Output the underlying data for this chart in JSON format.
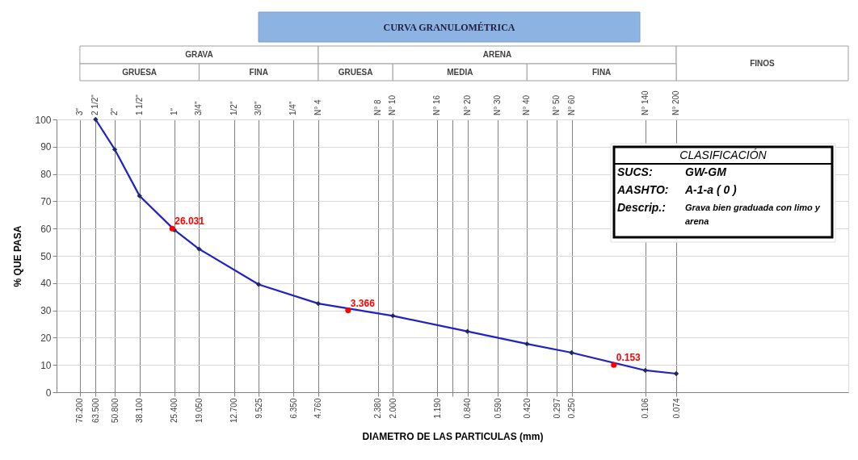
{
  "chart_data": {
    "type": "line",
    "title": "CURVA GRANULOMÉTRICA",
    "xlabel": "DIAMETRO DE LAS PARTICULAS (mm)",
    "ylabel": "% QUE PASA",
    "log": "x",
    "xlim": [
      100,
      0.01
    ],
    "ylim": [
      0,
      100
    ],
    "xticks": [
      {
        "value": 76.2,
        "label": "76.200"
      },
      {
        "value": 63.5,
        "label": "63.500"
      },
      {
        "value": 50.8,
        "label": "50.800"
      },
      {
        "value": 38.1,
        "label": "38.100"
      },
      {
        "value": 25.4,
        "label": "25.400"
      },
      {
        "value": 19.05,
        "label": "19.050"
      },
      {
        "value": 12.7,
        "label": "12.700"
      },
      {
        "value": 9.525,
        "label": "9.525"
      },
      {
        "value": 6.35,
        "label": "6.350"
      },
      {
        "value": 4.76,
        "label": "4.760"
      },
      {
        "value": 2.38,
        "label": "2.380"
      },
      {
        "value": 2.0,
        "label": "2.000"
      },
      {
        "value": 1.19,
        "label": "1.190"
      },
      {
        "value": 1.0,
        "label": null
      },
      {
        "value": 0.84,
        "label": "0.840"
      },
      {
        "value": 0.59,
        "label": "0.590"
      },
      {
        "value": 0.42,
        "label": "0.420"
      },
      {
        "value": 0.297,
        "label": "0.297"
      },
      {
        "value": 0.25,
        "label": "0.250"
      },
      {
        "value": 0.106,
        "label": "0.106"
      },
      {
        "value": 0.074,
        "label": "0.074"
      }
    ],
    "yticks": [
      0,
      10,
      20,
      30,
      40,
      50,
      60,
      70,
      80,
      90,
      100
    ],
    "grid": true,
    "series": [
      {
        "color": "#2121c4",
        "marker": "diamond",
        "line_style": "solid",
        "x": [
          63.5,
          50.8,
          38.1,
          25.4,
          19.05,
          9.525,
          4.76,
          2.0,
          0.84,
          0.42,
          0.25,
          0.106,
          0.074
        ],
        "values": [
          100,
          89,
          72,
          59.5,
          52.5,
          39.5,
          32.5,
          28,
          22.3,
          17.7,
          14.5,
          8,
          6.8
        ]
      },
      {
        "type": "scatter",
        "color": "#ff0000",
        "marker": "circle",
        "x": [
          26.031,
          3.366,
          0.153
        ],
        "values": [
          60,
          30,
          10
        ]
      }
    ],
    "annotations": [
      "GRAVA",
      "ARENA",
      "FINOS",
      "GRUESA",
      "FINA",
      "GRUESA",
      "MEDIA",
      "FINA",
      "CLASIFICACIÓN",
      "SUCS:",
      "GW-GM",
      "AASHTO:",
      "A-1-a ( 0 )",
      "Descrip.:",
      "Grava bien graduada con limo y arena",
      "3\"",
      "2 1/2\"",
      "2\"",
      "1 1/2\"",
      "1\"",
      "3/4\"",
      "1/2\"",
      "3/8\"",
      "1/4\"",
      "N° 4",
      "N° 8",
      "N° 10",
      "N° 16",
      "N° 20",
      "N° 30",
      "N° 40",
      "N° 50",
      "N° 60",
      "N° 140",
      "N° 200",
      {
        "text": "26.031",
        "x": 26.031,
        "y": 60
      },
      {
        "text": "3.366",
        "x": 3.366,
        "y": 30
      },
      {
        "text": "0.153",
        "x": 0.153,
        "y": 10
      }
    ]
  }
}
